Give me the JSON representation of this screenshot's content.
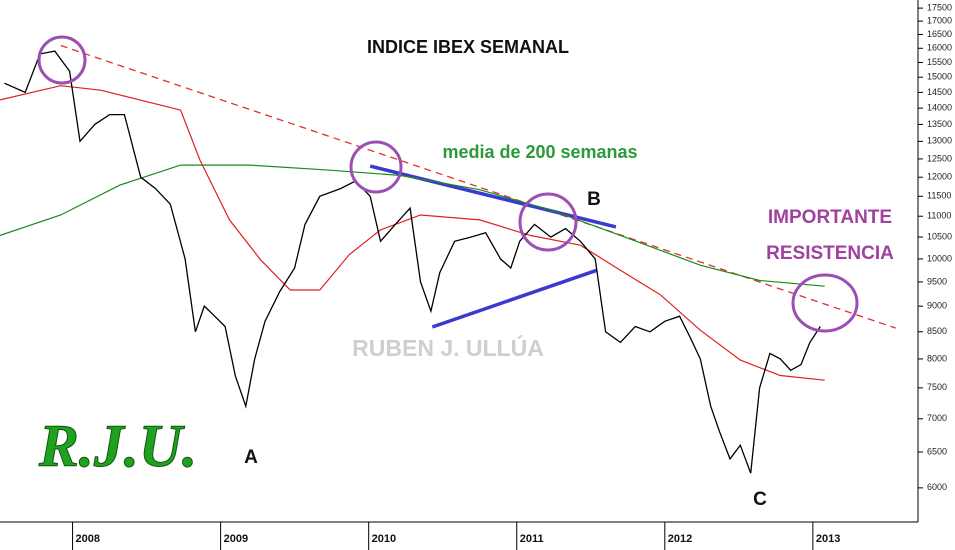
{
  "chart_data": {
    "type": "line",
    "title": "INDICE IBEX SEMANAL",
    "y_scale": "log",
    "ylim": [
      5560,
      17820
    ],
    "yticks": [
      6000,
      6500,
      7000,
      7500,
      8000,
      8500,
      9000,
      9500,
      10000,
      10500,
      11000,
      11500,
      12000,
      12500,
      13000,
      13500,
      14000,
      14500,
      15000,
      15500,
      16000,
      16500,
      17000,
      17500
    ],
    "xlim": [
      2007.51,
      2013.71
    ],
    "xticks": [
      2008,
      2009,
      2010,
      2011,
      2012,
      2013
    ],
    "series": [
      {
        "color": "#000000",
        "width": 1.3,
        "x": [
          2007.54,
          2007.68,
          2007.78,
          2007.88,
          2007.98,
          2008.05,
          2008.15,
          2008.25,
          2008.35,
          2008.46,
          2008.56,
          2008.66,
          2008.76,
          2008.83,
          2008.89,
          2008.96,
          2009.03,
          2009.1,
          2009.17,
          2009.23,
          2009.3,
          2009.4,
          2009.5,
          2009.57,
          2009.67,
          2009.81,
          2009.91,
          2010.01,
          2010.08,
          2010.18,
          2010.28,
          2010.35,
          2010.42,
          2010.48,
          2010.58,
          2010.69,
          2010.79,
          2010.89,
          2010.96,
          2011.02,
          2011.12,
          2011.23,
          2011.33,
          2011.43,
          2011.53,
          2011.6,
          2011.7,
          2011.8,
          2011.9,
          2012.0,
          2012.1,
          2012.17,
          2012.24,
          2012.31,
          2012.37,
          2012.44,
          2012.51,
          2012.58,
          2012.64,
          2012.71,
          2012.78,
          2012.85,
          2012.92,
          2012.98,
          2013.05
        ],
        "values": [
          14800,
          14500,
          15800,
          15900,
          15200,
          13000,
          13500,
          13800,
          13800,
          12000,
          11700,
          11300,
          10000,
          8500,
          9000,
          8800,
          8600,
          7700,
          7200,
          8000,
          8700,
          9300,
          9800,
          10800,
          11500,
          11700,
          11900,
          11500,
          10400,
          10800,
          11200,
          9500,
          8900,
          9700,
          10400,
          10500,
          10600,
          10000,
          9800,
          10400,
          10800,
          10500,
          10700,
          10400,
          10000,
          8500,
          8300,
          8600,
          8500,
          8700,
          8800,
          8400,
          8000,
          7200,
          6800,
          6400,
          6600,
          6200,
          7500,
          8100,
          8000,
          7800,
          7900,
          8300,
          8600
        ]
      },
      {
        "color": "#e02020",
        "width": 1.2,
        "x": [
          2007.51,
          2007.92,
          2008.19,
          2008.73,
          2008.86,
          2009.06,
          2009.27,
          2009.47,
          2009.67,
          2009.87,
          2010.08,
          2010.35,
          2010.75,
          2011.09,
          2011.43,
          2011.7,
          2011.97,
          2012.24,
          2012.51,
          2012.78,
          2013.08
        ],
        "values": [
          14260,
          14720,
          14570,
          13940,
          12470,
          10910,
          9980,
          9330,
          9330,
          10100,
          10670,
          11030,
          10910,
          10540,
          10310,
          9750,
          9230,
          8530,
          7980,
          7710,
          7630
        ]
      },
      {
        "color": "#1a8a1a",
        "width": 1.2,
        "x": [
          2007.51,
          2007.92,
          2008.32,
          2008.73,
          2009.2,
          2009.74,
          2010.21,
          2010.75,
          2011.23,
          2011.7,
          2012.24,
          2012.64,
          2013.08
        ],
        "values": [
          10540,
          11030,
          11790,
          12330,
          12330,
          12190,
          12050,
          11670,
          11150,
          10540,
          9860,
          9530,
          9410
        ]
      }
    ],
    "trend_lines": [
      {
        "color": "#e03030",
        "dash": true,
        "x": [
          2007.92,
          2013.56
        ],
        "values": [
          16100,
          8570
        ]
      },
      {
        "color": "#3a3ad0",
        "dash": false,
        "x": [
          2010.01,
          2011.67
        ],
        "values": [
          12300,
          10740
        ]
      },
      {
        "color": "#3a3ad0",
        "dash": false,
        "x": [
          2010.43,
          2011.54
        ],
        "values": [
          8590,
          9750
        ]
      }
    ],
    "annotations": {
      "ma_label": "media de 200 semanas",
      "resistance": [
        "IMPORTANTE",
        "RESISTENCIA"
      ],
      "watermark": "RUBEN J. ULLÚA",
      "logo": "R.J.U.",
      "point_a": "A",
      "point_b": "B",
      "point_c": "C"
    }
  }
}
